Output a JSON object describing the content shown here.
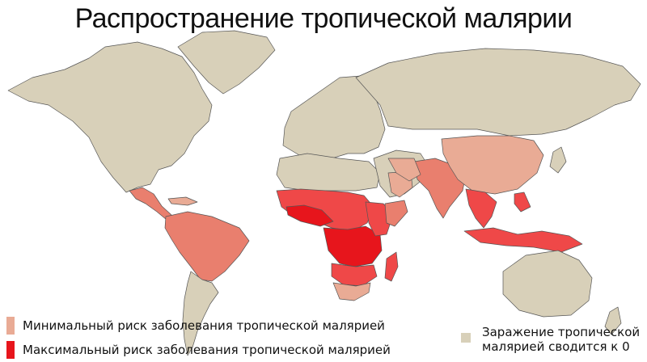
{
  "title": "Распространение тропической малярии",
  "legend": {
    "min_label": "Минимальный риск заболевания тропической малярией",
    "max_label": "Максимальный риск заболевания тропической малярией",
    "none_label_line1": "Заражение тропической",
    "none_label_line2": "малярией сводится к 0"
  },
  "colors": {
    "ocean": "#ffffff",
    "no_risk": "#d8d0b9",
    "low_risk": "#e9ab95",
    "mid_risk": "#e97f6e",
    "high_risk": "#ef4848",
    "max_risk": "#e7151c",
    "border": "#555555"
  }
}
